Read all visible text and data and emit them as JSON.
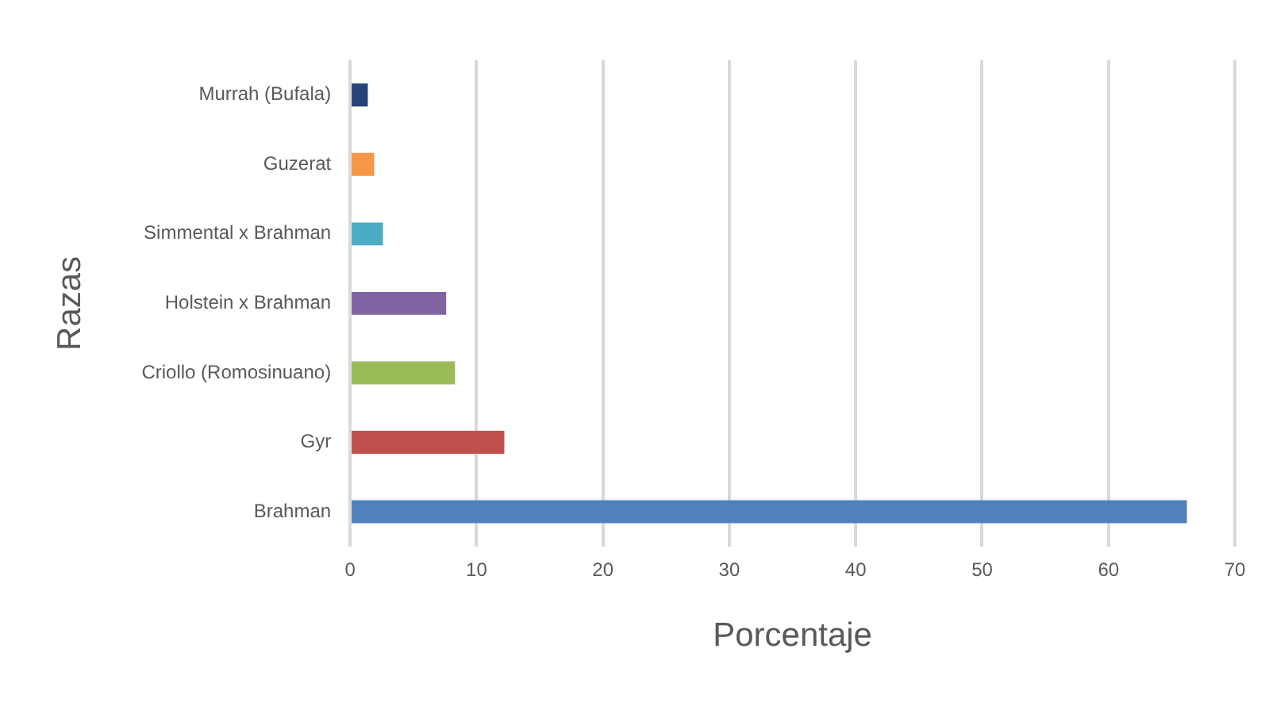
{
  "chart_data": {
    "type": "bar",
    "orientation": "horizontal",
    "xlabel": "Porcentaje",
    "ylabel": "Razas",
    "categories": [
      "Murrah (Bufala)",
      "Guzerat",
      "Simmental x Brahman",
      "Holstein x Brahman",
      "Criollo (Romosinuano)",
      "Gyr",
      "Brahman"
    ],
    "values": [
      1.4,
      1.9,
      2.6,
      7.6,
      8.3,
      12.2,
      66.2
    ],
    "colors": [
      "#264478",
      "#f79646",
      "#4bacc6",
      "#8064a2",
      "#9bbb59",
      "#c0504d",
      "#4f81bd"
    ],
    "xlim": [
      0,
      70
    ],
    "xticks": [
      0,
      10,
      20,
      30,
      40,
      50,
      60,
      70
    ],
    "grid": "x",
    "legend": false
  }
}
